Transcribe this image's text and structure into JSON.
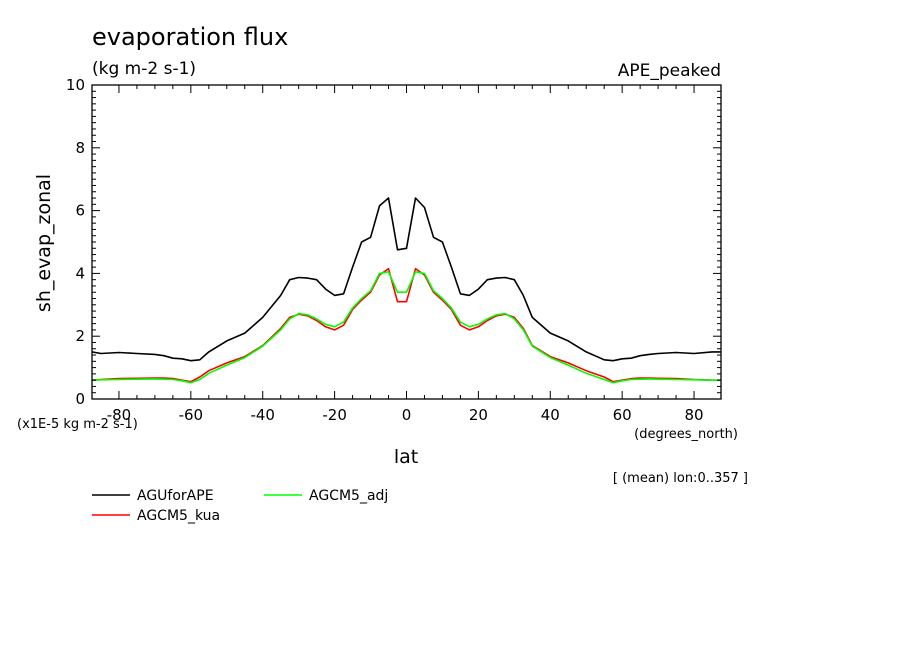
{
  "chart_data": {
    "type": "line",
    "title": "evaporation flux",
    "subtitle": "(kg m-2 s-1)",
    "experiment": "APE_peaked",
    "xlabel": "lat",
    "xunits": "(degrees_north)",
    "ylabel": "sh_evap_zonal",
    "yscale_note": "(x1E-5 kg m-2 s-1)",
    "average_note": "[ (mean) lon:0..357 ]",
    "xlim": [
      -87.5,
      87.5
    ],
    "ylim": [
      0,
      10
    ],
    "xticks": [
      -80,
      -60,
      -40,
      -20,
      0,
      20,
      40,
      60,
      80
    ],
    "xtick_labels": [
      "-80",
      "-60",
      "-40",
      "-20",
      "0",
      "20",
      "40",
      "60",
      "80"
    ],
    "yticks": [
      0,
      2,
      4,
      6,
      8,
      10
    ],
    "ytick_labels": [
      "0",
      "2",
      "4",
      "6",
      "8",
      "10"
    ],
    "grid": false,
    "legend_position": "bottom-left",
    "series": [
      {
        "name": "AGUforAPE",
        "color": "#000000",
        "x": [
          -87.5,
          -85,
          -80,
          -75,
          -70,
          -67.5,
          -65,
          -62.5,
          -60,
          -57.5,
          -55,
          -50,
          -45,
          -40,
          -35,
          -32.5,
          -30,
          -27.5,
          -25,
          -22.5,
          -20,
          -17.5,
          -15,
          -12.5,
          -10,
          -7.5,
          -5,
          -2.5,
          0,
          2.5,
          5,
          7.5,
          10,
          12.5,
          15,
          17.5,
          20,
          22.5,
          25,
          27.5,
          30,
          32.5,
          35,
          40,
          45,
          50,
          55,
          57.5,
          60,
          62.5,
          65,
          67.5,
          70,
          75,
          80,
          85,
          87.5
        ],
        "y": [
          1.5,
          1.45,
          1.48,
          1.45,
          1.42,
          1.38,
          1.3,
          1.28,
          1.22,
          1.25,
          1.5,
          1.85,
          2.1,
          2.6,
          3.3,
          3.8,
          3.87,
          3.85,
          3.8,
          3.5,
          3.3,
          3.35,
          4.2,
          5.0,
          5.15,
          6.15,
          6.4,
          4.75,
          4.8,
          6.4,
          6.1,
          5.15,
          5.0,
          4.2,
          3.35,
          3.3,
          3.5,
          3.8,
          3.85,
          3.87,
          3.8,
          3.3,
          2.6,
          2.1,
          1.85,
          1.5,
          1.25,
          1.22,
          1.28,
          1.3,
          1.38,
          1.42,
          1.45,
          1.48,
          1.45,
          1.5,
          1.5
        ]
      },
      {
        "name": "AGCM5_kua",
        "color": "#ff0000",
        "x": [
          -87.5,
          -85,
          -80,
          -75,
          -70,
          -67.5,
          -65,
          -62.5,
          -60,
          -57.5,
          -55,
          -50,
          -45,
          -40,
          -35,
          -32.5,
          -30,
          -27.5,
          -25,
          -22.5,
          -20,
          -17.5,
          -15,
          -12.5,
          -10,
          -7.5,
          -5,
          -2.5,
          0,
          2.5,
          5,
          7.5,
          10,
          12.5,
          15,
          17.5,
          20,
          22.5,
          25,
          27.5,
          30,
          32.5,
          35,
          40,
          45,
          50,
          55,
          57.5,
          60,
          62.5,
          65,
          67.5,
          70,
          75,
          80,
          85,
          87.5
        ],
        "y": [
          0.6,
          0.62,
          0.65,
          0.66,
          0.67,
          0.67,
          0.65,
          0.6,
          0.55,
          0.7,
          0.9,
          1.15,
          1.35,
          1.7,
          2.25,
          2.6,
          2.7,
          2.65,
          2.5,
          2.3,
          2.2,
          2.35,
          2.85,
          3.15,
          3.4,
          3.95,
          4.15,
          3.1,
          3.1,
          4.15,
          3.95,
          3.4,
          3.15,
          2.85,
          2.35,
          2.2,
          2.3,
          2.5,
          2.65,
          2.7,
          2.6,
          2.25,
          1.7,
          1.35,
          1.15,
          0.9,
          0.7,
          0.55,
          0.6,
          0.65,
          0.67,
          0.67,
          0.66,
          0.65,
          0.62,
          0.6,
          0.6
        ]
      },
      {
        "name": "AGCM5_adj",
        "color": "#00ff00",
        "x": [
          -87.5,
          -85,
          -80,
          -75,
          -70,
          -67.5,
          -65,
          -62.5,
          -60,
          -57.5,
          -55,
          -50,
          -45,
          -40,
          -35,
          -32.5,
          -30,
          -27.5,
          -25,
          -22.5,
          -20,
          -17.5,
          -15,
          -12.5,
          -10,
          -7.5,
          -5,
          -2.5,
          0,
          2.5,
          5,
          7.5,
          10,
          12.5,
          15,
          17.5,
          20,
          22.5,
          25,
          27.5,
          30,
          32.5,
          35,
          40,
          45,
          50,
          55,
          57.5,
          60,
          62.5,
          65,
          67.5,
          70,
          75,
          80,
          85,
          87.5
        ],
        "y": [
          0.6,
          0.61,
          0.62,
          0.63,
          0.64,
          0.63,
          0.62,
          0.58,
          0.52,
          0.62,
          0.82,
          1.08,
          1.32,
          1.68,
          2.2,
          2.55,
          2.72,
          2.68,
          2.55,
          2.38,
          2.3,
          2.45,
          2.9,
          3.2,
          3.45,
          4.0,
          4.05,
          3.4,
          3.4,
          4.05,
          4.0,
          3.45,
          3.2,
          2.9,
          2.45,
          2.3,
          2.38,
          2.55,
          2.68,
          2.72,
          2.55,
          2.2,
          1.68,
          1.32,
          1.08,
          0.82,
          0.62,
          0.52,
          0.58,
          0.62,
          0.63,
          0.64,
          0.63,
          0.62,
          0.61,
          0.6,
          0.6
        ]
      }
    ]
  }
}
